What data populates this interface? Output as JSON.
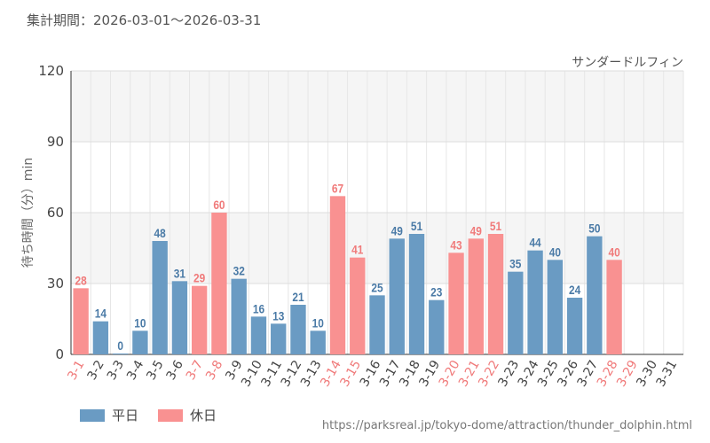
{
  "header": {
    "period_label": "集計期間：2026-03-01～2026-03-31",
    "attraction_name": "サンダードルフィン"
  },
  "legend": {
    "weekday_label": "平日",
    "holiday_label": "休日"
  },
  "source_url": "https://parksreal.jp/tokyo-dome/attraction/thunder_dolphin.html",
  "colors": {
    "weekday": "#6a9bc3",
    "holiday": "#f99191",
    "weekday_text": "#4a7aa6",
    "holiday_text": "#f07a7a"
  },
  "chart_data": {
    "type": "bar",
    "title": "",
    "xlabel": "",
    "ylabel": "待ち時間（分）min",
    "ylim": [
      0,
      120
    ],
    "yticks": [
      0,
      30,
      60,
      90,
      120
    ],
    "grid": true,
    "categories": [
      "3-1",
      "3-2",
      "3-3",
      "3-4",
      "3-5",
      "3-6",
      "3-7",
      "3-8",
      "3-9",
      "3-10",
      "3-11",
      "3-12",
      "3-13",
      "3-14",
      "3-15",
      "3-16",
      "3-17",
      "3-18",
      "3-19",
      "3-20",
      "3-21",
      "3-22",
      "3-23",
      "3-24",
      "3-25",
      "3-26",
      "3-27",
      "3-28",
      "3-29",
      "3-30",
      "3-31"
    ],
    "values": [
      28,
      14,
      0,
      10,
      48,
      31,
      29,
      60,
      32,
      16,
      13,
      21,
      10,
      67,
      41,
      25,
      49,
      51,
      23,
      43,
      49,
      51,
      35,
      44,
      40,
      24,
      50,
      40,
      null,
      null,
      null
    ],
    "day_type": [
      "holiday",
      "weekday",
      "weekday",
      "weekday",
      "weekday",
      "weekday",
      "holiday",
      "holiday",
      "weekday",
      "weekday",
      "weekday",
      "weekday",
      "weekday",
      "holiday",
      "holiday",
      "weekday",
      "weekday",
      "weekday",
      "weekday",
      "holiday",
      "holiday",
      "holiday",
      "weekday",
      "weekday",
      "weekday",
      "weekday",
      "weekday",
      "holiday",
      "holiday",
      "weekday",
      "weekday"
    ]
  }
}
